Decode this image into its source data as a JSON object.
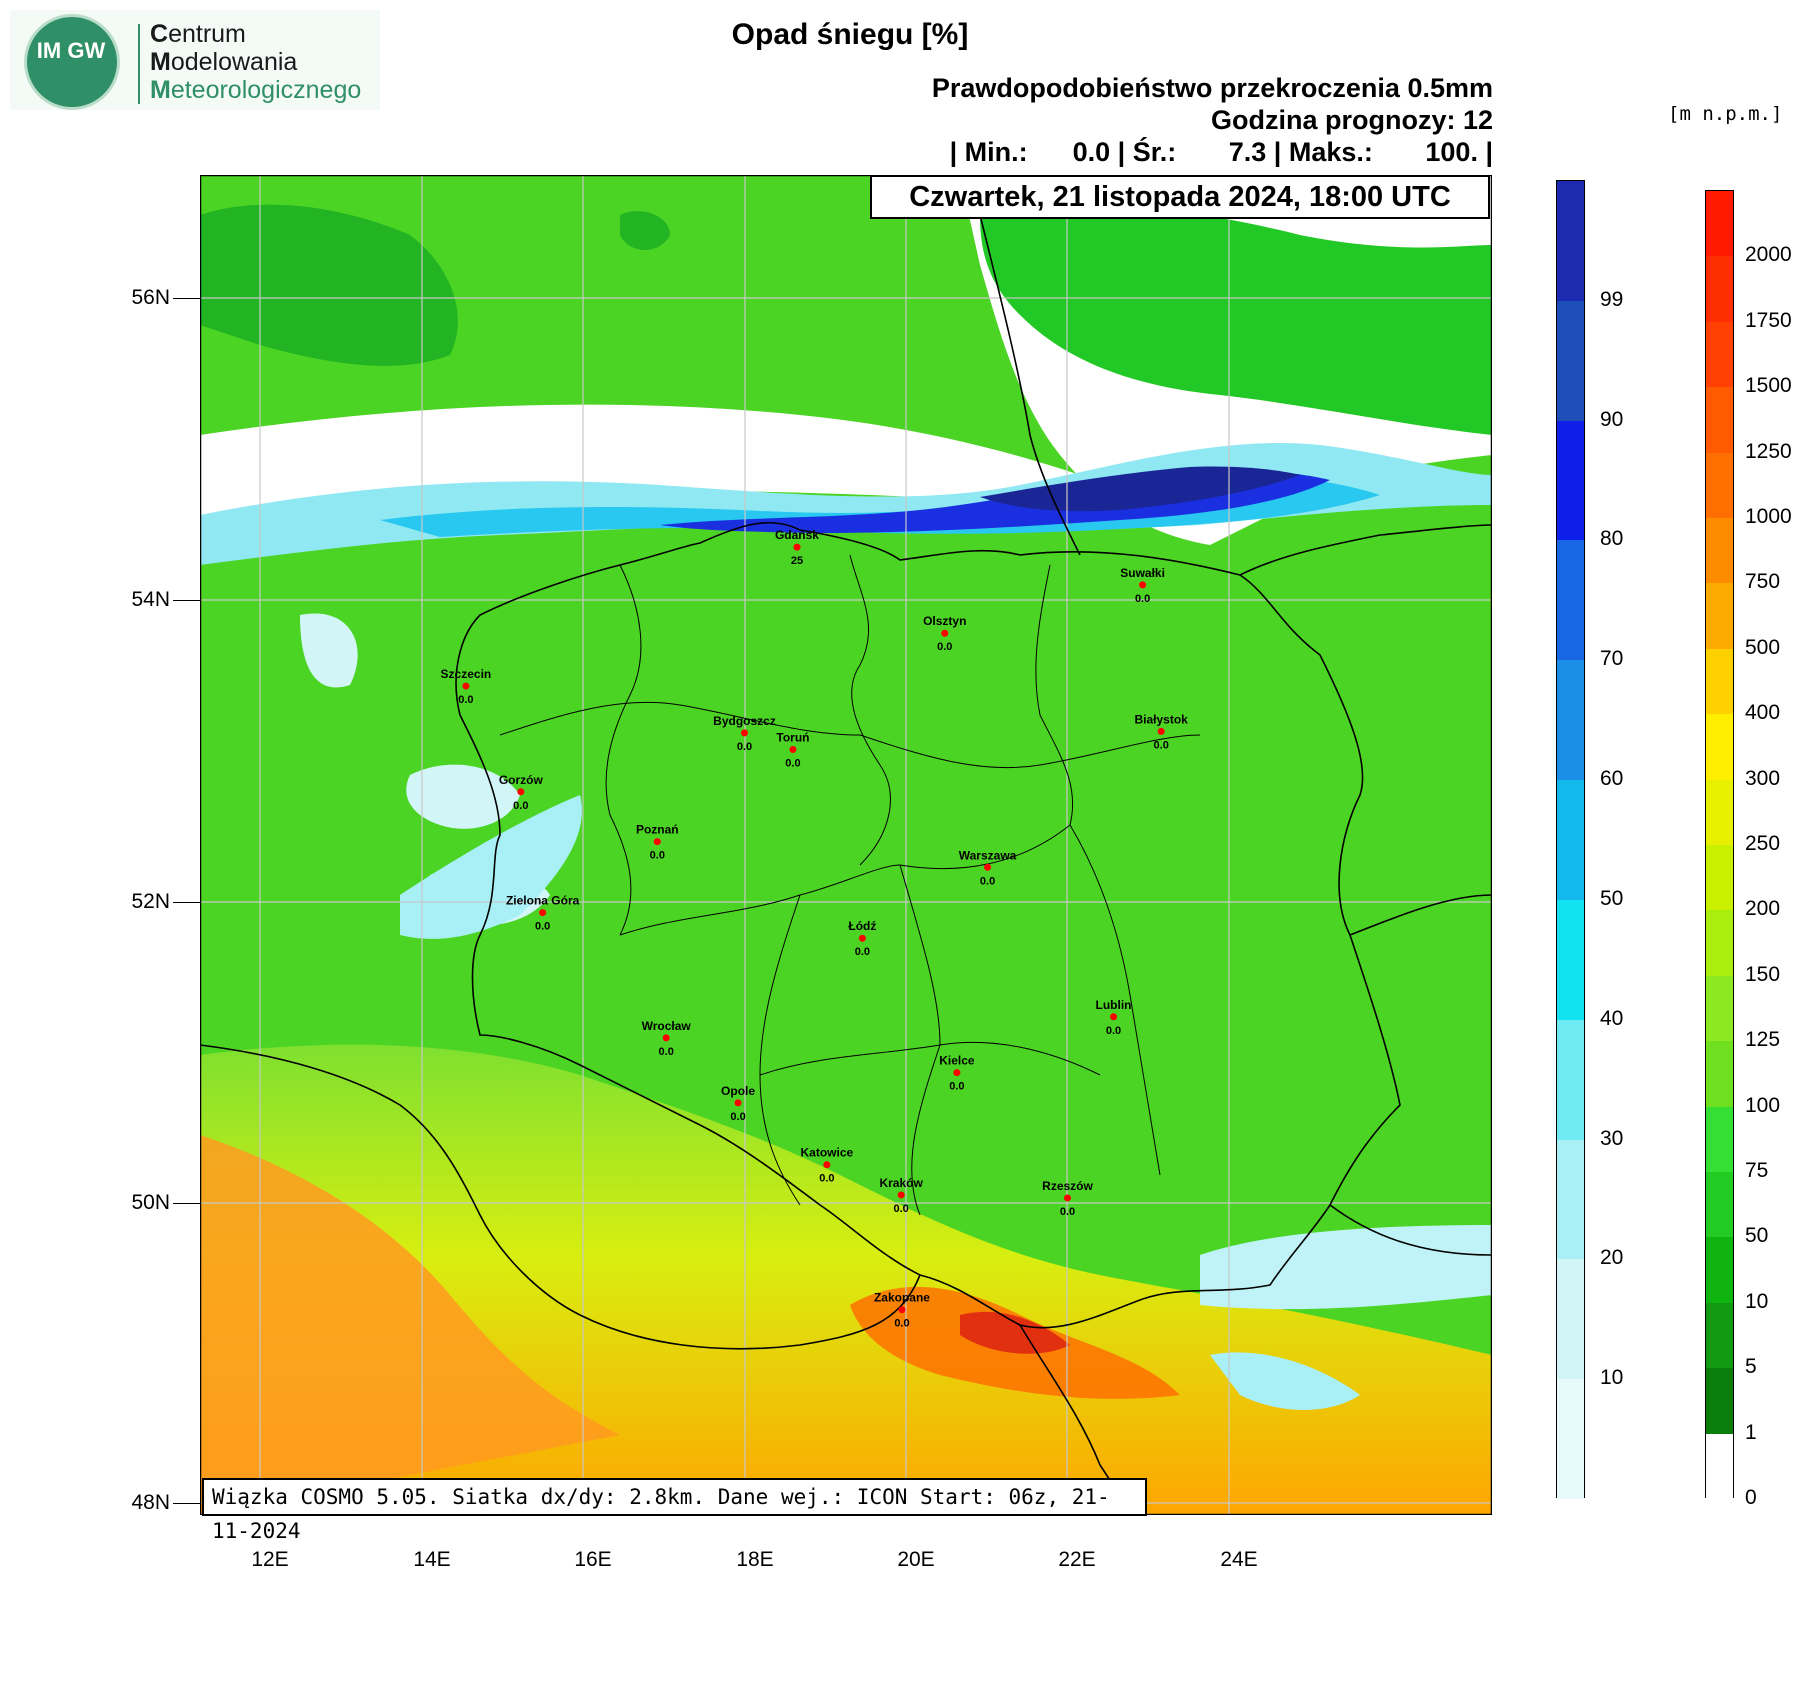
{
  "logo": {
    "badge": "IM GW",
    "line1_initial": "C",
    "line1_rest": "entrum",
    "line2_initial": "M",
    "line2_rest": "odelowania",
    "line3_initial": "M",
    "line3_rest": "eteorologicznego"
  },
  "header": {
    "title": "Opad śniegu [%]",
    "subtitle": "Prawdopodobieństwo przekroczenia 0.5mm",
    "forecast_hour": "Godzina prognozy: 12",
    "stats": "| Min.:      0.0 | Śr.:       7.3 | Maks.:       100. |",
    "date": "Czwartek, 21 listopada 2024, 18:00 UTC"
  },
  "info": "Wiązka COSMO 5.05. Siatka dx/dy: 2.8km. Dane wej.: ICON Start: 06z, 21-11-2024",
  "axes": {
    "lat_labels": [
      "56N",
      "54N",
      "52N",
      "50N",
      "48N"
    ],
    "lon_labels": [
      "12E",
      "14E",
      "16E",
      "18E",
      "20E",
      "22E",
      "24E"
    ]
  },
  "colorbar_snow": {
    "labels": [
      "99",
      "90",
      "80",
      "70",
      "60",
      "50",
      "40",
      "30",
      "20",
      "10"
    ],
    "colors": [
      "#1c2bb0",
      "#1e4fb8",
      "#0d1fe8",
      "#1666e6",
      "#1b8fe8",
      "#13b9ec",
      "#10e2f0",
      "#6fe9f2",
      "#a8f0f5",
      "#d2f6f8",
      "#e8fbfc"
    ]
  },
  "colorbar_elev": {
    "unit": "[m n.p.m.]",
    "labels": [
      "2000",
      "1750",
      "1500",
      "1250",
      "1000",
      "750",
      "500",
      "400",
      "300",
      "250",
      "200",
      "150",
      "125",
      "100",
      "75",
      "50",
      "10",
      "5",
      "1",
      "0"
    ],
    "colors": [
      "#ff1a00",
      "#ff2e00",
      "#ff4000",
      "#ff5a00",
      "#ff6e00",
      "#ff8c00",
      "#ffaa00",
      "#ffd000",
      "#ffee00",
      "#e6f000",
      "#c8f000",
      "#aaee10",
      "#8ce820",
      "#6ee020",
      "#33e033",
      "#22cc22",
      "#10b410",
      "#129a12",
      "#0b7d0b",
      "#ffffff"
    ]
  },
  "cities": [
    {
      "name": "Gdańsk",
      "value": "25",
      "lon": 18.65,
      "lat": 54.35
    },
    {
      "name": "Suwałki",
      "value": "0.0",
      "lon": 22.93,
      "lat": 54.1
    },
    {
      "name": "Olsztyn",
      "value": "0.0",
      "lon": 20.48,
      "lat": 53.78
    },
    {
      "name": "Szczecin",
      "value": "0.0",
      "lon": 14.55,
      "lat": 53.43
    },
    {
      "name": "Bydgoszcz",
      "value": "0.0",
      "lon": 18.0,
      "lat": 53.12
    },
    {
      "name": "Toruń",
      "value": "0.0",
      "lon": 18.6,
      "lat": 53.01
    },
    {
      "name": "Białystok",
      "value": "0.0",
      "lon": 23.16,
      "lat": 53.13
    },
    {
      "name": "Gorzów",
      "value": "0.0",
      "lon": 15.23,
      "lat": 52.73
    },
    {
      "name": "Poznań",
      "value": "0.0",
      "lon": 16.92,
      "lat": 52.4
    },
    {
      "name": "Warszawa",
      "value": "0.0",
      "lon": 21.01,
      "lat": 52.23
    },
    {
      "name": "Zielona Góra",
      "value": "0.0",
      "lon": 15.5,
      "lat": 51.93
    },
    {
      "name": "Łódź",
      "value": "0.0",
      "lon": 19.46,
      "lat": 51.76
    },
    {
      "name": "Lublin",
      "value": "0.0",
      "lon": 22.57,
      "lat": 51.24
    },
    {
      "name": "Wrocław",
      "value": "0.0",
      "lon": 17.03,
      "lat": 51.1
    },
    {
      "name": "Kielce",
      "value": "0.0",
      "lon": 20.63,
      "lat": 50.87
    },
    {
      "name": "Opole",
      "value": "0.0",
      "lon": 17.92,
      "lat": 50.67
    },
    {
      "name": "Katowice",
      "value": "0.0",
      "lon": 19.02,
      "lat": 50.26
    },
    {
      "name": "Kraków",
      "value": "0.0",
      "lon": 19.94,
      "lat": 50.06
    },
    {
      "name": "Rzeszów",
      "value": "0.0",
      "lon": 22.0,
      "lat": 50.04
    },
    {
      "name": "Zakopane",
      "value": "0.0",
      "lon": 19.95,
      "lat": 49.3
    }
  ]
}
